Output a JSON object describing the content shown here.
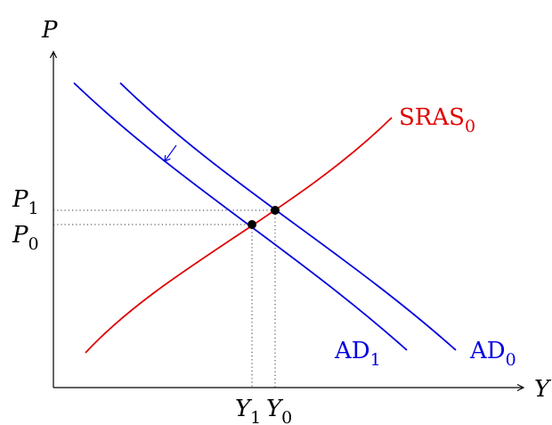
{
  "axes": {
    "y_label": "P",
    "x_label": "Y"
  },
  "ticks": {
    "p1": {
      "main": "P",
      "sub": "1"
    },
    "p0": {
      "main": "P",
      "sub": "0"
    },
    "y1": {
      "main": "Y",
      "sub": "1"
    },
    "y0": {
      "main": "Y",
      "sub": "0"
    }
  },
  "curves": {
    "sras": {
      "main": "SRAS",
      "sub": "0",
      "color": "#e00000"
    },
    "ad1": {
      "main": "AD",
      "sub": "1",
      "color": "#0000e0"
    },
    "ad0": {
      "main": "AD",
      "sub": "0",
      "color": "#0000e0"
    }
  },
  "shift_arrow": {
    "direction": "down-left",
    "color": "#0000e0"
  },
  "equilibria": [
    {
      "name": "original",
      "price": "P1",
      "output": "Y0"
    },
    {
      "name": "new",
      "price": "P0",
      "output": "Y1"
    }
  ]
}
